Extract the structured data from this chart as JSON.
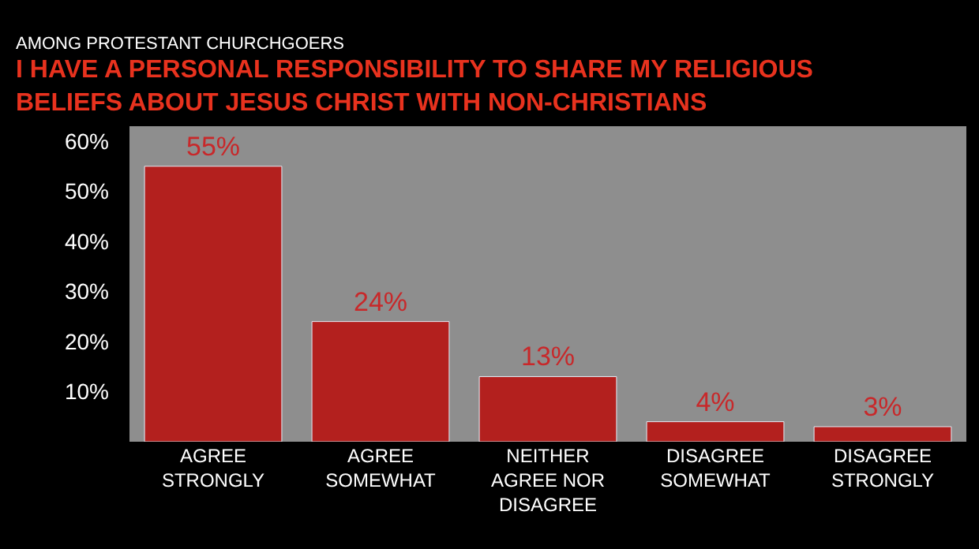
{
  "chart_data": {
    "type": "bar",
    "subtitle": "AMONG PROTESTANT CHURCHGOERS",
    "title": "I HAVE A PERSONAL RESPONSIBILITY TO SHARE MY RELIGIOUS\nBELIEFS ABOUT JESUS CHRIST WITH NON-CHRISTIANS",
    "categories": [
      "AGREE\nSTRONGLY",
      "AGREE\nSOMEWHAT",
      "NEITHER\nAGREE NOR\nDISAGREE",
      "DISAGREE\nSOMEWHAT",
      "DISAGREE\nSTRONGLY"
    ],
    "values": [
      55,
      24,
      13,
      4,
      3
    ],
    "value_labels": [
      "55%",
      "24%",
      "13%",
      "4%",
      "3%"
    ],
    "color": "#b3201e",
    "ylim": [
      0,
      63
    ],
    "yticks": [
      {
        "value": 10,
        "label": "10%"
      },
      {
        "value": 20,
        "label": "20%"
      },
      {
        "value": 30,
        "label": "30%"
      },
      {
        "value": 40,
        "label": "40%"
      },
      {
        "value": 50,
        "label": "50%"
      },
      {
        "value": 60,
        "label": "60%"
      }
    ],
    "grid": false,
    "legend": false
  }
}
